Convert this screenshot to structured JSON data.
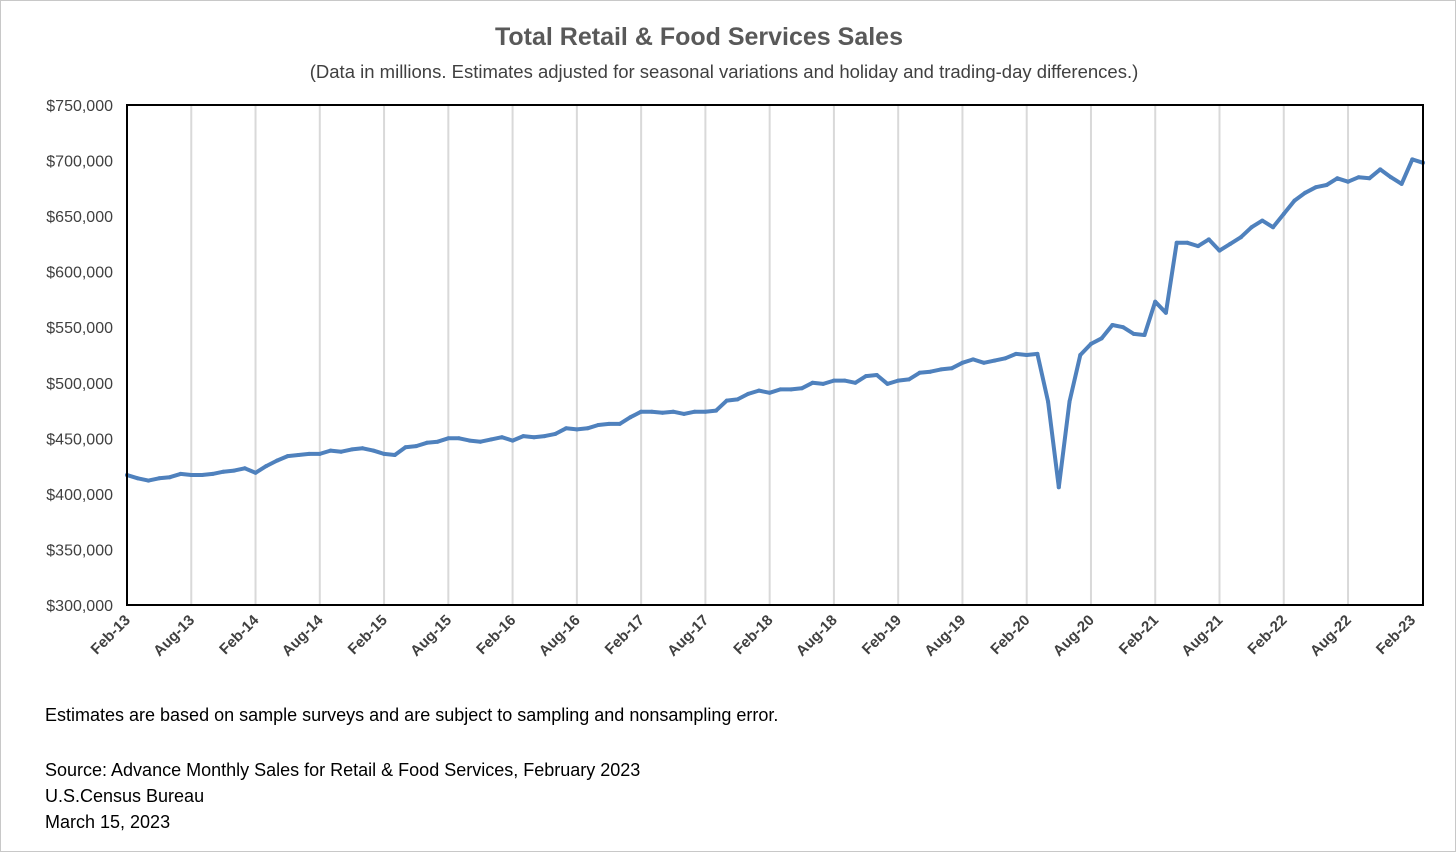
{
  "chart_data": {
    "type": "line",
    "title": "Total Retail & Food Services Sales",
    "subtitle": "(Data in millions. Estimates adjusted for seasonal variations and holiday and trading-day differences.)",
    "xlabel": "",
    "ylabel": "",
    "ylim": [
      300000,
      750000
    ],
    "y_ticks": [
      "$300,000",
      "$350,000",
      "$400,000",
      "$450,000",
      "$500,000",
      "$550,000",
      "$600,000",
      "$650,000",
      "$700,000",
      "$750,000"
    ],
    "x_ticks": [
      "Feb-13",
      "Aug-13",
      "Feb-14",
      "Aug-14",
      "Feb-15",
      "Aug-15",
      "Feb-16",
      "Aug-16",
      "Feb-17",
      "Aug-17",
      "Feb-18",
      "Aug-18",
      "Feb-19",
      "Aug-19",
      "Feb-20",
      "Aug-20",
      "Feb-21",
      "Aug-21",
      "Feb-22",
      "Aug-22",
      "Feb-23"
    ],
    "grid": "vertical",
    "line_color": "#4f81bd",
    "series": [
      {
        "values": [
          417000,
          414000,
          412000,
          414000,
          415000,
          418000,
          417000,
          417000,
          418000,
          420000,
          421000,
          423000,
          419000,
          425000,
          430000,
          434000,
          435000,
          436000,
          436000,
          439000,
          438000,
          440000,
          441000,
          439000,
          436000,
          435000,
          442000,
          443000,
          446000,
          447000,
          450000,
          450000,
          448000,
          447000,
          449000,
          451000,
          448000,
          452000,
          451000,
          452000,
          454000,
          459000,
          458000,
          459000,
          462000,
          463000,
          463000,
          469000,
          474000,
          474000,
          473000,
          474000,
          472000,
          474000,
          474000,
          475000,
          484000,
          485000,
          490000,
          493000,
          491000,
          494000,
          494000,
          495000,
          500000,
          499000,
          502000,
          502000,
          500000,
          506000,
          507000,
          499000,
          502000,
          503000,
          509000,
          510000,
          512000,
          513000,
          518000,
          521000,
          518000,
          520000,
          522000,
          526000,
          525000,
          526000,
          483000,
          406000,
          483000,
          525000,
          535000,
          540000,
          552000,
          550000,
          544000,
          543000,
          573000,
          563000,
          626000,
          626000,
          623000,
          629000,
          619000,
          625000,
          631000,
          640000,
          646000,
          640000,
          652000,
          664000,
          671000,
          676000,
          678000,
          684000,
          681000,
          685000,
          684000,
          692000,
          685000,
          679000,
          701000,
          698000
        ]
      }
    ],
    "start_month": "Feb-13"
  },
  "footnote": "Estimates are based on sample surveys and are subject to sampling and nonsampling error.",
  "source": {
    "line1": "Source: Advance Monthly Sales for Retail & Food Services, February 2023",
    "line2": "U.S.Census Bureau",
    "line3": "March 15, 2023"
  }
}
